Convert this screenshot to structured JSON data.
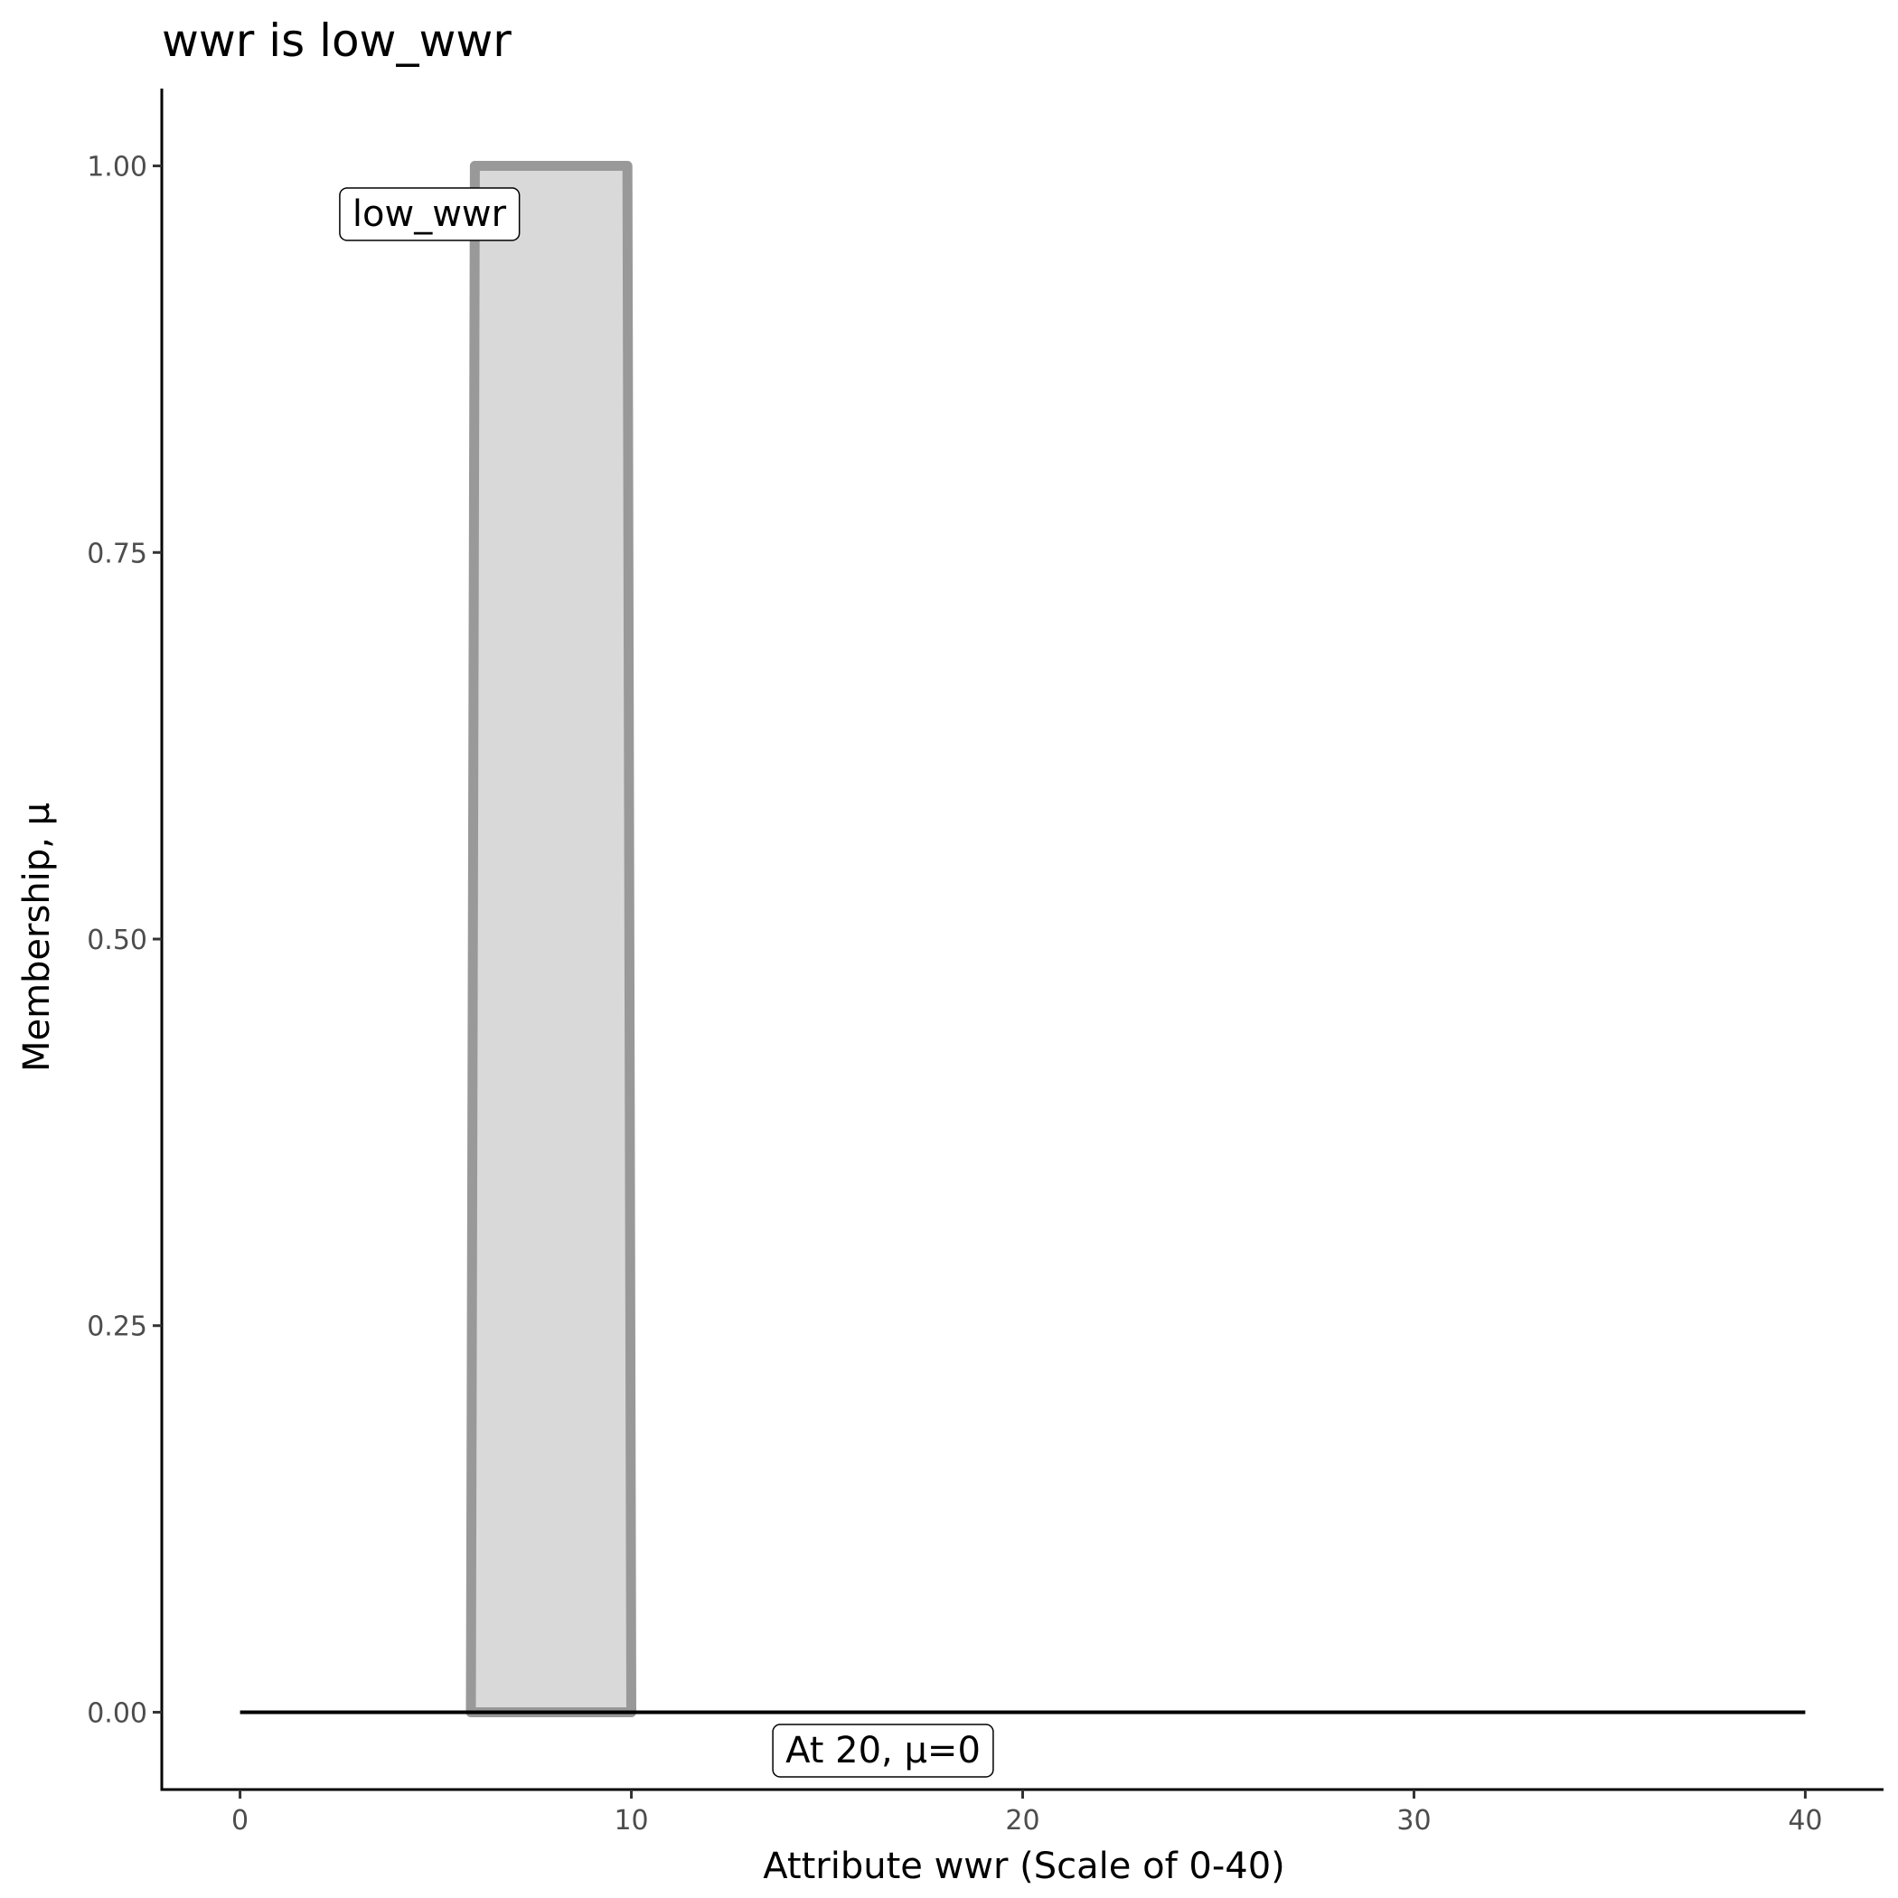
{
  "chart_data": {
    "type": "area",
    "title": "wwr is low_wwr",
    "x_label": "Attribute wwr (Scale of 0-40)",
    "y_label": "Membership, μ",
    "series": [
      {
        "name": "low_wwr",
        "color": "#999999",
        "fill": "#d9d9d9",
        "x": [
          5.9,
          6,
          9.9,
          10
        ],
        "values": [
          0,
          1,
          1,
          0
        ]
      },
      {
        "name": "At 20, μ=0",
        "color": "#000000",
        "x": [
          0,
          40
        ],
        "values": [
          0,
          0
        ]
      }
    ],
    "xlim": [
      -2,
      42
    ],
    "xticks": [
      0,
      10,
      20,
      30,
      40
    ],
    "ylim": [
      -0.05,
      1.05
    ],
    "yticks": [
      {
        "value": 0,
        "label": "0.00"
      },
      {
        "value": 0.25,
        "label": "0.25"
      },
      {
        "value": 0.5,
        "label": "0.50"
      },
      {
        "value": 0.75,
        "label": "0.75"
      },
      {
        "value": 1,
        "label": "1.00"
      }
    ],
    "grid": false
  }
}
